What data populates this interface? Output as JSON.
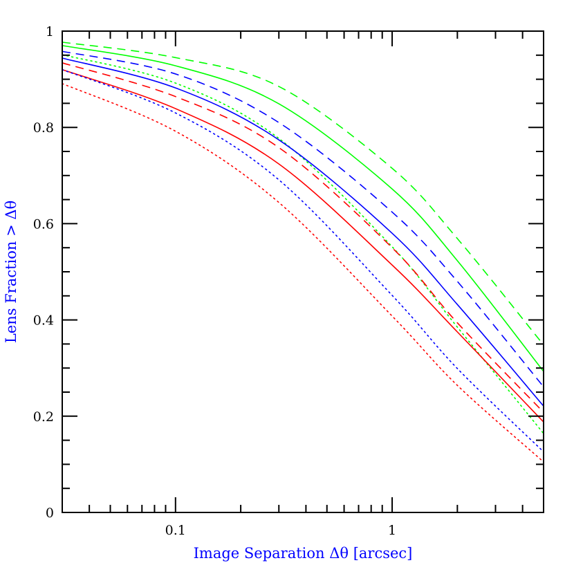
{
  "chart_data": {
    "type": "line",
    "title": "",
    "xlabel": "Image Separation Δθ [arcsec]",
    "ylabel": "Lens Fraction > Δθ",
    "xscale": "log",
    "xlim": [
      0.03,
      5
    ],
    "ylim": [
      0,
      1
    ],
    "grid": false,
    "legend": "none",
    "xticks": [
      {
        "value": 0.1,
        "label": "0.1"
      },
      {
        "value": 1,
        "label": "1"
      }
    ],
    "yticks": [
      {
        "value": 0,
        "label": "0"
      },
      {
        "value": 0.2,
        "label": "0.2"
      },
      {
        "value": 0.4,
        "label": "0.4"
      },
      {
        "value": 0.6,
        "label": "0.6"
      },
      {
        "value": 0.8,
        "label": "0.8"
      },
      {
        "value": 1,
        "label": "1"
      }
    ],
    "x": [
      0.03,
      0.1,
      0.3,
      1,
      2,
      5
    ],
    "series": [
      {
        "color": "#00ff00",
        "style": "dashed",
        "values": [
          0.977,
          0.945,
          0.885,
          0.715,
          0.569,
          0.348
        ]
      },
      {
        "color": "#00ff00",
        "style": "solid",
        "values": [
          0.97,
          0.928,
          0.849,
          0.672,
          0.523,
          0.293
        ]
      },
      {
        "color": "#0000ff",
        "style": "dashed",
        "values": [
          0.958,
          0.911,
          0.81,
          0.624,
          0.48,
          0.261
        ]
      },
      {
        "color": "#00ff00",
        "style": "dotted",
        "values": [
          0.951,
          0.892,
          0.777,
          0.552,
          0.385,
          0.164
        ]
      },
      {
        "color": "#0000ff",
        "style": "solid",
        "values": [
          0.944,
          0.882,
          0.774,
          0.58,
          0.432,
          0.221
        ]
      },
      {
        "color": "#ff0000",
        "style": "dashed",
        "values": [
          0.934,
          0.864,
          0.758,
          0.55,
          0.394,
          0.208
        ]
      },
      {
        "color": "#ff0000",
        "style": "solid",
        "values": [
          0.92,
          0.839,
          0.724,
          0.514,
          0.375,
          0.188
        ]
      },
      {
        "color": "#0000ff",
        "style": "dotted",
        "values": [
          0.92,
          0.83,
          0.691,
          0.451,
          0.299,
          0.126
        ]
      },
      {
        "color": "#ff0000",
        "style": "dotted",
        "values": [
          0.891,
          0.792,
          0.644,
          0.408,
          0.264,
          0.105
        ]
      }
    ]
  }
}
